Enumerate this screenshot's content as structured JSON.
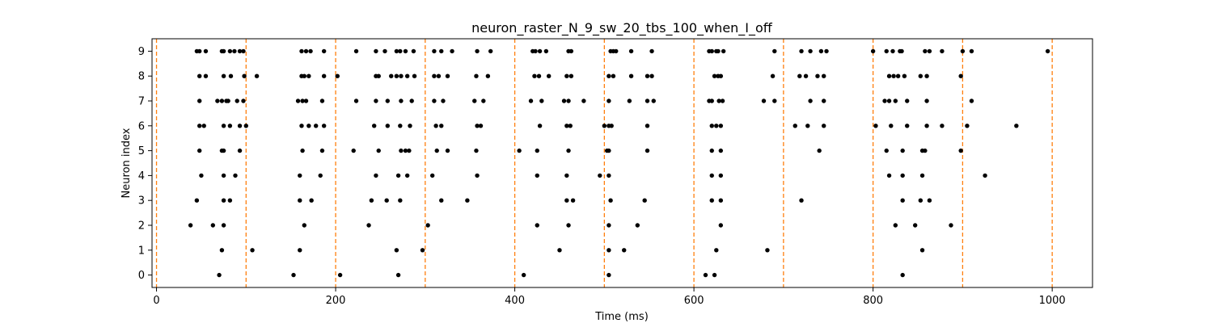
{
  "chart_data": {
    "type": "scatter",
    "title": "neuron_raster_N_9_sw_20_tbs_100_when_I_off",
    "xlabel": "Time (ms)",
    "ylabel": "Neuron index",
    "xlim": [
      -5,
      1045
    ],
    "ylim": [
      -0.5,
      9.5
    ],
    "xticks": [
      0,
      200,
      400,
      600,
      800,
      1000
    ],
    "yticks": [
      0,
      1,
      2,
      3,
      4,
      5,
      6,
      7,
      8,
      9
    ],
    "grid": false,
    "legend": "none",
    "marker_color": "#000000",
    "vline_color": "#ff7f0e",
    "vlines": [
      0,
      100,
      200,
      300,
      400,
      500,
      600,
      700,
      800,
      900,
      1000
    ],
    "spikes": [
      {
        "neuron": 9,
        "times": [
          45,
          48,
          55,
          73,
          75,
          82,
          87,
          93,
          97,
          162,
          167,
          172,
          187,
          223,
          245,
          255,
          268,
          272,
          278,
          287,
          310,
          318,
          330,
          358,
          373,
          420,
          423,
          428,
          435,
          460,
          463,
          507,
          510,
          513,
          530,
          553,
          617,
          620,
          625,
          627,
          633,
          690,
          720,
          730,
          742,
          748,
          800,
          815,
          822,
          830,
          832,
          858,
          863,
          877,
          900,
          910,
          995
        ]
      },
      {
        "neuron": 8,
        "times": [
          48,
          55,
          75,
          83,
          98,
          112,
          162,
          165,
          170,
          187,
          202,
          245,
          248,
          262,
          268,
          273,
          280,
          288,
          310,
          315,
          325,
          357,
          370,
          422,
          427,
          438,
          458,
          463,
          505,
          510,
          530,
          548,
          553,
          623,
          627,
          630,
          688,
          718,
          725,
          738,
          745,
          818,
          823,
          828,
          835,
          853,
          860,
          898
        ]
      },
      {
        "neuron": 7,
        "times": [
          48,
          68,
          73,
          78,
          80,
          90,
          97,
          158,
          163,
          167,
          185,
          223,
          245,
          258,
          273,
          285,
          310,
          320,
          355,
          365,
          418,
          430,
          455,
          460,
          477,
          505,
          528,
          548,
          555,
          617,
          620,
          628,
          632,
          678,
          690,
          730,
          745,
          813,
          818,
          825,
          838,
          860,
          910
        ]
      },
      {
        "neuron": 6,
        "times": [
          48,
          53,
          75,
          82,
          93,
          100,
          162,
          170,
          178,
          187,
          243,
          258,
          272,
          283,
          312,
          318,
          358,
          362,
          428,
          458,
          462,
          500,
          505,
          508,
          548,
          620,
          625,
          630,
          713,
          727,
          745,
          803,
          820,
          838,
          860,
          877,
          905,
          960
        ]
      },
      {
        "neuron": 5,
        "times": [
          48,
          73,
          75,
          93,
          163,
          185,
          220,
          248,
          273,
          278,
          282,
          313,
          325,
          357,
          405,
          425,
          460,
          503,
          505,
          548,
          620,
          630,
          740,
          815,
          833,
          855,
          858,
          898
        ]
      },
      {
        "neuron": 4,
        "times": [
          50,
          75,
          88,
          160,
          183,
          245,
          270,
          280,
          308,
          358,
          425,
          458,
          495,
          505,
          620,
          630,
          818,
          833,
          855,
          925
        ]
      },
      {
        "neuron": 3,
        "times": [
          45,
          75,
          82,
          160,
          173,
          240,
          257,
          272,
          318,
          347,
          458,
          465,
          507,
          545,
          620,
          630,
          720,
          833,
          853,
          863
        ]
      },
      {
        "neuron": 2,
        "times": [
          38,
          63,
          75,
          165,
          237,
          303,
          425,
          460,
          505,
          537,
          630,
          825,
          847,
          887
        ]
      },
      {
        "neuron": 1,
        "times": [
          73,
          107,
          160,
          268,
          297,
          450,
          505,
          522,
          625,
          682,
          855
        ]
      },
      {
        "neuron": 0,
        "times": [
          70,
          153,
          205,
          270,
          410,
          505,
          613,
          623,
          833
        ]
      }
    ]
  }
}
